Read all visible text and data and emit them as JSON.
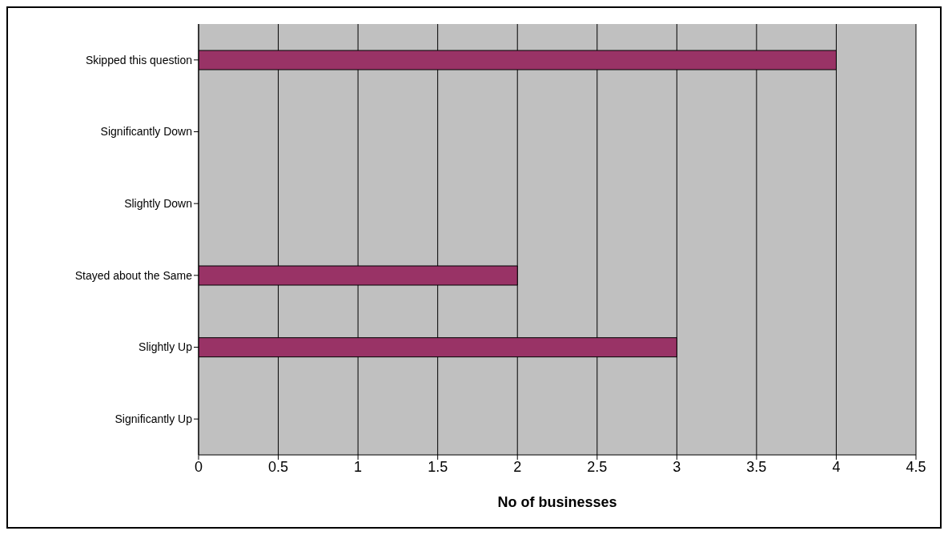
{
  "chart_data": {
    "type": "bar",
    "orientation": "horizontal",
    "xlabel": "No of businesses",
    "categories": [
      "Skipped this question",
      "Significantly Down",
      "Slightly Down",
      "Stayed about the Same",
      "Slightly Up",
      "Significantly Up"
    ],
    "values": [
      4,
      0,
      0,
      2,
      3,
      0
    ],
    "color": "#993366",
    "xlim": [
      0,
      4.5
    ],
    "xticks": [
      0,
      0.5,
      1,
      1.5,
      2,
      2.5,
      3,
      3.5,
      4,
      4.5
    ],
    "grid": "x"
  }
}
